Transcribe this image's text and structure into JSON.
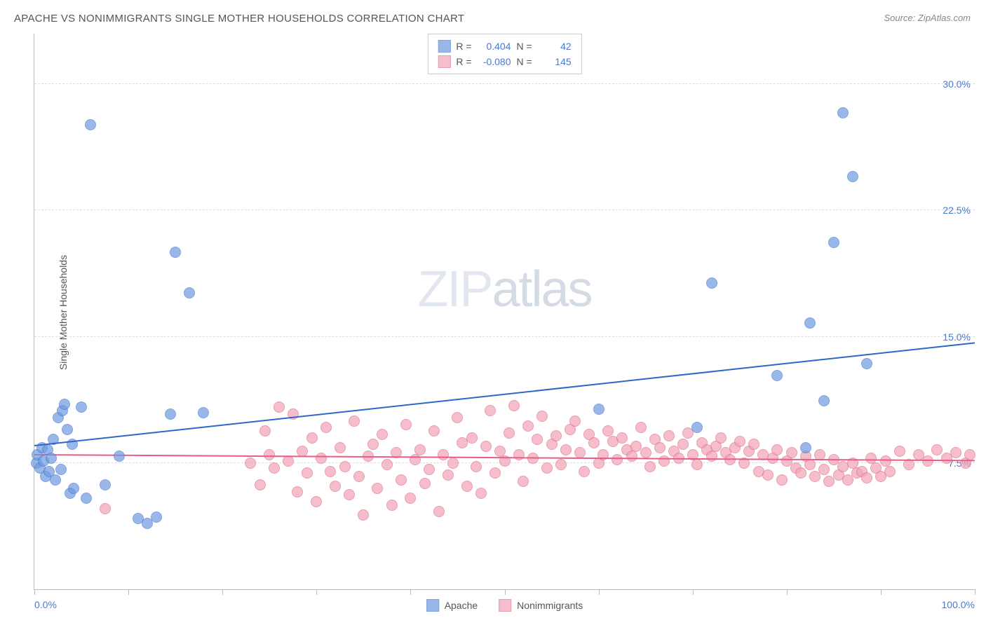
{
  "title": "APACHE VS NONIMMIGRANTS SINGLE MOTHER HOUSEHOLDS CORRELATION CHART",
  "source": "Source: ZipAtlas.com",
  "y_axis_label": "Single Mother Households",
  "watermark_a": "ZIP",
  "watermark_b": "atlas",
  "chart": {
    "type": "scatter",
    "background_color": "#ffffff",
    "grid_color": "#dddddd",
    "axis_color": "#bbbbbb",
    "xlim": [
      0,
      100
    ],
    "ylim": [
      0,
      33
    ],
    "y_ticks": [
      {
        "value": 7.5,
        "label": "7.5%",
        "color": "#4a7bd0"
      },
      {
        "value": 15.0,
        "label": "15.0%",
        "color": "#4a7bd0"
      },
      {
        "value": 22.5,
        "label": "22.5%",
        "color": "#4a7bd0"
      },
      {
        "value": 30.0,
        "label": "30.0%",
        "color": "#4a7bd0"
      }
    ],
    "x_ticks": [
      0,
      10,
      20,
      30,
      40,
      50,
      60,
      70,
      80,
      90,
      100
    ],
    "x_labels": [
      {
        "value": 0,
        "label": "0.0%",
        "color": "#4a7bd0"
      },
      {
        "value": 100,
        "label": "100.0%",
        "color": "#4a7bd0"
      }
    ],
    "marker_radius": 8,
    "marker_border_width": 1.2,
    "marker_fill_opacity": 0.35,
    "series": [
      {
        "name": "Apache",
        "color": "#6f9ae0",
        "border_color": "#4a7bd0",
        "R": "0.404",
        "N": "42",
        "trend": {
          "x1": 0,
          "y1": 8.5,
          "x2": 100,
          "y2": 14.6,
          "color": "#2f66c9",
          "width": 2
        },
        "points": [
          [
            0.2,
            7.5
          ],
          [
            0.3,
            8.0
          ],
          [
            0.6,
            7.2
          ],
          [
            0.8,
            8.4
          ],
          [
            1.0,
            7.6
          ],
          [
            1.2,
            6.7
          ],
          [
            1.4,
            8.3
          ],
          [
            1.6,
            7.0
          ],
          [
            1.8,
            7.8
          ],
          [
            2.0,
            8.9
          ],
          [
            2.2,
            6.5
          ],
          [
            2.5,
            10.2
          ],
          [
            2.8,
            7.1
          ],
          [
            3.0,
            10.6
          ],
          [
            3.2,
            11.0
          ],
          [
            3.5,
            9.5
          ],
          [
            3.8,
            5.7
          ],
          [
            4.0,
            8.6
          ],
          [
            4.2,
            6.0
          ],
          [
            5.0,
            10.8
          ],
          [
            5.5,
            5.4
          ],
          [
            6.0,
            27.6
          ],
          [
            7.5,
            6.2
          ],
          [
            9.0,
            7.9
          ],
          [
            11.0,
            4.2
          ],
          [
            12.0,
            3.9
          ],
          [
            13.0,
            4.3
          ],
          [
            14.5,
            10.4
          ],
          [
            15.0,
            20.0
          ],
          [
            16.5,
            17.6
          ],
          [
            18.0,
            10.5
          ],
          [
            60.0,
            10.7
          ],
          [
            70.5,
            9.6
          ],
          [
            72.0,
            18.2
          ],
          [
            79.0,
            12.7
          ],
          [
            82.0,
            8.4
          ],
          [
            82.5,
            15.8
          ],
          [
            84.0,
            11.2
          ],
          [
            85.0,
            20.6
          ],
          [
            86.0,
            28.3
          ],
          [
            87.0,
            24.5
          ],
          [
            88.5,
            13.4
          ]
        ]
      },
      {
        "name": "Nonimmigrants",
        "color": "#f2a3b4",
        "border_color": "#e07290",
        "R": "-0.080",
        "N": "145",
        "trend": {
          "x1": 0,
          "y1": 7.95,
          "x2": 100,
          "y2": 7.6,
          "color": "#e85d88",
          "width": 2
        },
        "points": [
          [
            7.5,
            4.8
          ],
          [
            23.0,
            7.5
          ],
          [
            24.0,
            6.2
          ],
          [
            24.5,
            9.4
          ],
          [
            25.0,
            8.0
          ],
          [
            25.5,
            7.2
          ],
          [
            26.0,
            10.8
          ],
          [
            27.0,
            7.6
          ],
          [
            27.5,
            10.4
          ],
          [
            28.0,
            5.8
          ],
          [
            28.5,
            8.2
          ],
          [
            29.0,
            6.9
          ],
          [
            29.5,
            9.0
          ],
          [
            30.0,
            5.2
          ],
          [
            30.5,
            7.8
          ],
          [
            31.0,
            9.6
          ],
          [
            31.5,
            7.0
          ],
          [
            32.0,
            6.1
          ],
          [
            32.5,
            8.4
          ],
          [
            33.0,
            7.3
          ],
          [
            33.5,
            5.6
          ],
          [
            34.0,
            10.0
          ],
          [
            34.5,
            6.7
          ],
          [
            35.0,
            4.4
          ],
          [
            35.5,
            7.9
          ],
          [
            36.0,
            8.6
          ],
          [
            36.5,
            6.0
          ],
          [
            37.0,
            9.2
          ],
          [
            37.5,
            7.4
          ],
          [
            38.0,
            5.0
          ],
          [
            38.5,
            8.1
          ],
          [
            39.0,
            6.5
          ],
          [
            39.5,
            9.8
          ],
          [
            40.0,
            5.4
          ],
          [
            40.5,
            7.7
          ],
          [
            41.0,
            8.3
          ],
          [
            41.5,
            6.3
          ],
          [
            42.0,
            7.1
          ],
          [
            42.5,
            9.4
          ],
          [
            43.0,
            4.6
          ],
          [
            43.5,
            8.0
          ],
          [
            44.0,
            6.8
          ],
          [
            44.5,
            7.5
          ],
          [
            45.0,
            10.2
          ],
          [
            45.5,
            8.7
          ],
          [
            46.0,
            6.1
          ],
          [
            46.5,
            9.0
          ],
          [
            47.0,
            7.3
          ],
          [
            47.5,
            5.7
          ],
          [
            48.0,
            8.5
          ],
          [
            48.5,
            10.6
          ],
          [
            49.0,
            6.9
          ],
          [
            49.5,
            8.2
          ],
          [
            50.0,
            7.6
          ],
          [
            50.5,
            9.3
          ],
          [
            51.0,
            10.9
          ],
          [
            51.5,
            8.0
          ],
          [
            52.0,
            6.4
          ],
          [
            52.5,
            9.7
          ],
          [
            53.0,
            7.8
          ],
          [
            53.5,
            8.9
          ],
          [
            54.0,
            10.3
          ],
          [
            54.5,
            7.2
          ],
          [
            55.0,
            8.6
          ],
          [
            55.5,
            9.1
          ],
          [
            56.0,
            7.4
          ],
          [
            56.5,
            8.3
          ],
          [
            57.0,
            9.5
          ],
          [
            57.5,
            10.0
          ],
          [
            58.0,
            8.1
          ],
          [
            58.5,
            7.0
          ],
          [
            59.0,
            9.2
          ],
          [
            59.5,
            8.7
          ],
          [
            60.0,
            7.5
          ],
          [
            60.5,
            8.0
          ],
          [
            61.0,
            9.4
          ],
          [
            61.5,
            8.8
          ],
          [
            62.0,
            7.7
          ],
          [
            62.5,
            9.0
          ],
          [
            63.0,
            8.3
          ],
          [
            63.5,
            7.9
          ],
          [
            64.0,
            8.5
          ],
          [
            64.5,
            9.6
          ],
          [
            65.0,
            8.1
          ],
          [
            65.5,
            7.3
          ],
          [
            66.0,
            8.9
          ],
          [
            66.5,
            8.4
          ],
          [
            67.0,
            7.6
          ],
          [
            67.5,
            9.1
          ],
          [
            68.0,
            8.2
          ],
          [
            68.5,
            7.8
          ],
          [
            69.0,
            8.6
          ],
          [
            69.5,
            9.3
          ],
          [
            70.0,
            8.0
          ],
          [
            70.5,
            7.4
          ],
          [
            71.0,
            8.7
          ],
          [
            71.5,
            8.3
          ],
          [
            72.0,
            7.9
          ],
          [
            72.5,
            8.5
          ],
          [
            73.0,
            9.0
          ],
          [
            73.5,
            8.1
          ],
          [
            74.0,
            7.7
          ],
          [
            74.5,
            8.4
          ],
          [
            75.0,
            8.8
          ],
          [
            75.5,
            7.5
          ],
          [
            76.0,
            8.2
          ],
          [
            76.5,
            8.6
          ],
          [
            77.0,
            7.0
          ],
          [
            77.5,
            8.0
          ],
          [
            78.0,
            6.8
          ],
          [
            78.5,
            7.8
          ],
          [
            79.0,
            8.3
          ],
          [
            79.5,
            6.5
          ],
          [
            80.0,
            7.6
          ],
          [
            80.5,
            8.1
          ],
          [
            81.0,
            7.2
          ],
          [
            81.5,
            6.9
          ],
          [
            82.0,
            7.9
          ],
          [
            82.5,
            7.4
          ],
          [
            83.0,
            6.7
          ],
          [
            83.5,
            8.0
          ],
          [
            84.0,
            7.1
          ],
          [
            84.5,
            6.4
          ],
          [
            85.0,
            7.7
          ],
          [
            85.5,
            6.8
          ],
          [
            86.0,
            7.3
          ],
          [
            86.5,
            6.5
          ],
          [
            87.0,
            7.5
          ],
          [
            87.5,
            6.9
          ],
          [
            88.0,
            7.0
          ],
          [
            88.5,
            6.6
          ],
          [
            89.0,
            7.8
          ],
          [
            89.5,
            7.2
          ],
          [
            90.0,
            6.7
          ],
          [
            90.5,
            7.6
          ],
          [
            91.0,
            7.0
          ],
          [
            92.0,
            8.2
          ],
          [
            93.0,
            7.4
          ],
          [
            94.0,
            8.0
          ],
          [
            95.0,
            7.6
          ],
          [
            96.0,
            8.3
          ],
          [
            97.0,
            7.8
          ],
          [
            98.0,
            8.1
          ],
          [
            99.0,
            7.5
          ],
          [
            99.5,
            8.0
          ]
        ]
      }
    ],
    "legend_top": {
      "R_label": "R =",
      "N_label": "N =",
      "value_color": "#4a7bd0"
    },
    "legend_bottom_color": "#555555"
  }
}
